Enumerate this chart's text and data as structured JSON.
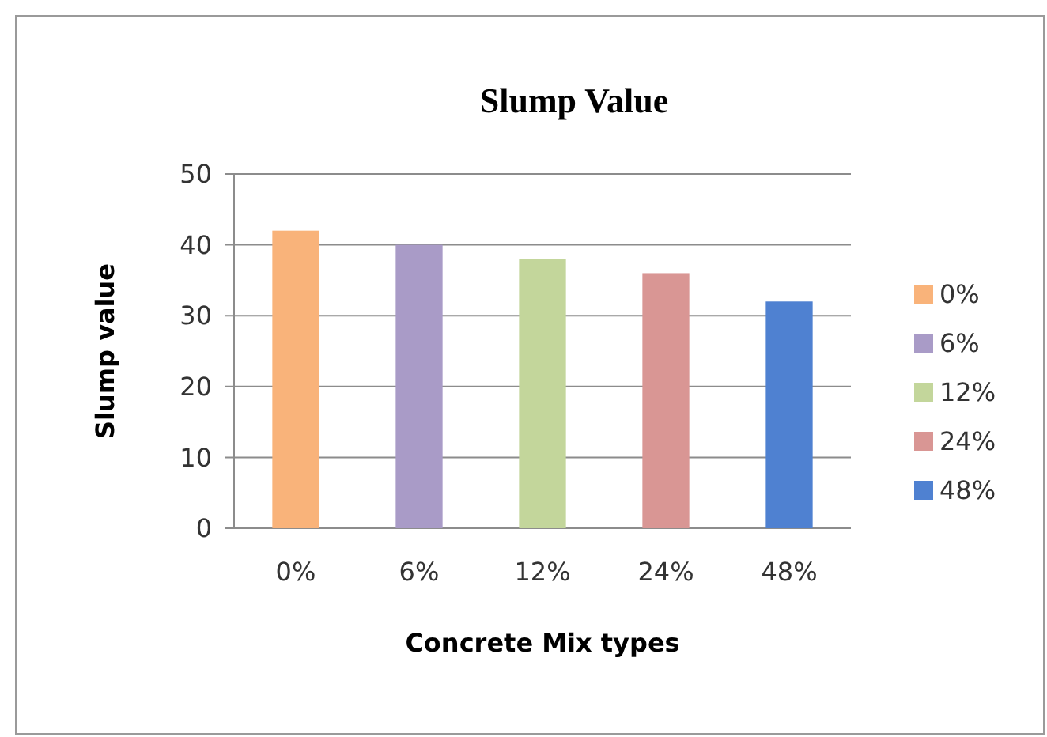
{
  "chart_data": {
    "type": "bar",
    "title": "Slump Value",
    "xlabel": "Concrete Mix types",
    "ylabel": "Slump value",
    "categories": [
      "0%",
      "6%",
      "12%",
      "24%",
      "48%"
    ],
    "series": [
      {
        "name": "0%",
        "color": "#f9b37a",
        "values": [
          42,
          null,
          null,
          null,
          null
        ]
      },
      {
        "name": "6%",
        "color": "#a99bc7",
        "values": [
          null,
          40,
          null,
          null,
          null
        ]
      },
      {
        "name": "12%",
        "color": "#c3d69b",
        "values": [
          null,
          null,
          38,
          null,
          null
        ]
      },
      {
        "name": "24%",
        "color": "#d99694",
        "values": [
          null,
          null,
          null,
          36,
          null
        ]
      },
      {
        "name": "48%",
        "color": "#4f81d1",
        "values": [
          null,
          null,
          null,
          null,
          32
        ]
      }
    ],
    "ylim": [
      0,
      50
    ],
    "yticks": [
      0,
      10,
      20,
      30,
      40,
      50
    ],
    "grid": "y",
    "legend": "right"
  }
}
